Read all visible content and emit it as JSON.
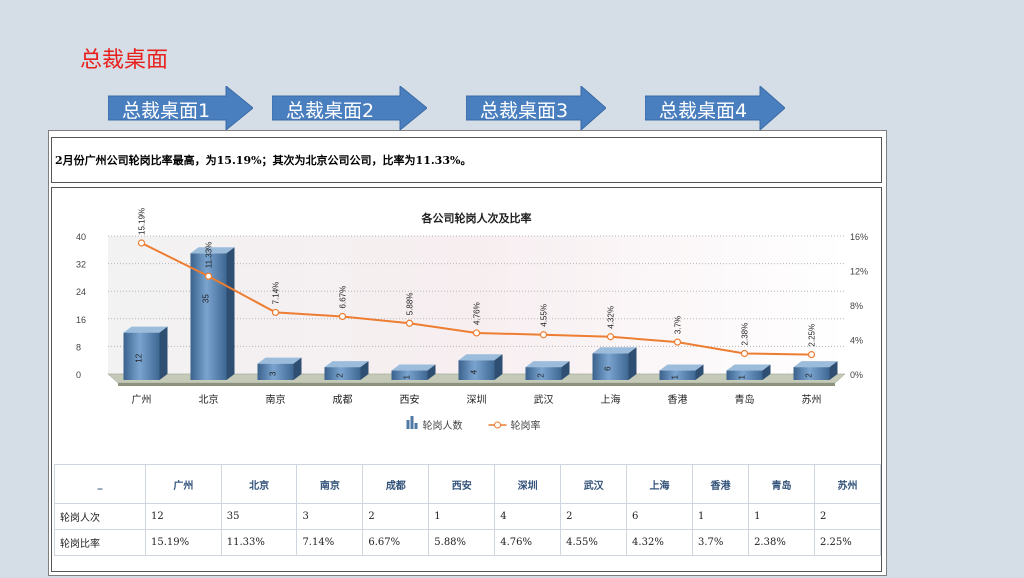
{
  "page": {
    "title": "总裁桌面",
    "nav": [
      "总裁桌面1",
      "总裁桌面2",
      "总裁桌面3",
      "总裁桌面4"
    ]
  },
  "summary": "2月份广州公司轮岗比率最高，为15.19%；其次为北京公司公司，比率为11.33%。",
  "chart_data": {
    "type": "bar",
    "title": "各公司轮岗人次及比率",
    "categories": [
      "广州",
      "北京",
      "南京",
      "成都",
      "西安",
      "深圳",
      "武汉",
      "上海",
      "香港",
      "青岛",
      "苏州"
    ],
    "series": [
      {
        "name": "轮岗人数",
        "type": "bar",
        "axis": "left",
        "values": [
          12,
          35,
          3,
          2,
          1,
          4,
          2,
          6,
          1,
          1,
          2
        ],
        "labels": [
          "12",
          "35",
          "3",
          "2",
          "1",
          "4",
          "2",
          "6",
          "1",
          "1",
          "2"
        ]
      },
      {
        "name": "轮岗率",
        "type": "line",
        "axis": "right",
        "values": [
          15.19,
          11.33,
          7.14,
          6.67,
          5.88,
          4.76,
          4.55,
          4.32,
          3.7,
          2.38,
          2.25
        ],
        "labels": [
          "15.19%",
          "11.33%",
          "7.14%",
          "6.67%",
          "5.88%",
          "4.76%",
          "4.55%",
          "4.32%",
          "3.7%",
          "2.38%",
          "2.25%"
        ]
      }
    ],
    "y_left": {
      "min": 0,
      "max": 40,
      "ticks": [
        "0",
        "8",
        "16",
        "24",
        "32",
        "40"
      ]
    },
    "y_right": {
      "min": 0,
      "max": 16,
      "ticks": [
        "0%",
        "4%",
        "8%",
        "12%",
        "16%"
      ]
    },
    "grid": true,
    "legend_position": "bottom",
    "colors": {
      "bar": "#4f7aa6",
      "line": "#ed7d31",
      "floor": "#c5cab8"
    }
  },
  "table": {
    "corner": "_",
    "headers": [
      "广州",
      "北京",
      "南京",
      "成都",
      "西安",
      "深圳",
      "武汉",
      "上海",
      "香港",
      "青岛",
      "苏州"
    ],
    "rows": [
      {
        "label": "轮岗人次",
        "cells": [
          "12",
          "35",
          "3",
          "2",
          "1",
          "4",
          "2",
          "6",
          "1",
          "1",
          "2"
        ]
      },
      {
        "label": "轮岗比率",
        "cells": [
          "15.19%",
          "11.33%",
          "7.14%",
          "6.67%",
          "5.88%",
          "4.76%",
          "4.55%",
          "4.32%",
          "3.7%",
          "2.38%",
          "2.25%"
        ]
      }
    ]
  }
}
